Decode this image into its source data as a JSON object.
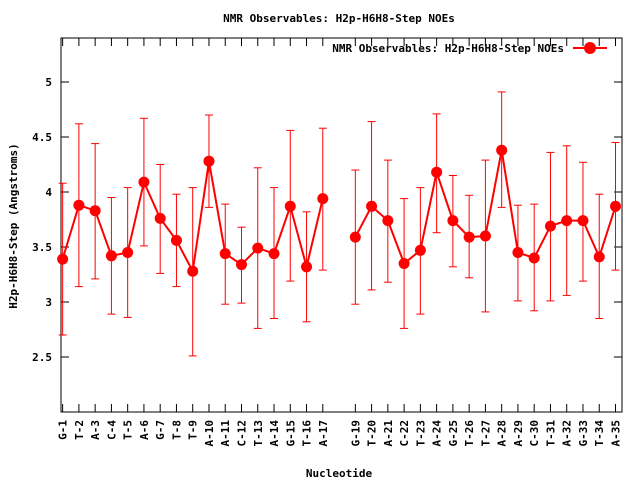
{
  "chart_data": {
    "type": "line",
    "title": "NMR Observables: H2p-H6H8-Step NOEs",
    "xlabel": "Nucleotide",
    "ylabel": "H2p-H6H8-Step (Angstroms)",
    "ylim": [
      2.0,
      5.4
    ],
    "yticks": [
      2.5,
      3,
      3.5,
      4,
      4.5,
      5
    ],
    "ytick_labels": [
      "2.5",
      "3",
      "3.5",
      "4",
      "4.5",
      "5"
    ],
    "x_range": [
      0.9,
      35.4
    ],
    "legend": {
      "label": "NMR Observables: H2p-H6H8-Step NOEs",
      "position": "top-right"
    },
    "colors": {
      "series": "#ff0000",
      "axis": "#000000",
      "background": "#ffffff"
    },
    "categories": [
      "G-1",
      "T-2",
      "A-3",
      "C-4",
      "T-5",
      "A-6",
      "G-7",
      "T-8",
      "T-9",
      "A-10",
      "A-11",
      "C-12",
      "T-13",
      "A-14",
      "G-15",
      "T-16",
      "A-17",
      "G-19",
      "T-20",
      "A-21",
      "C-22",
      "T-23",
      "A-24",
      "G-25",
      "T-26",
      "T-27",
      "A-28",
      "A-29",
      "C-30",
      "T-31",
      "A-32",
      "G-33",
      "T-34",
      "A-35"
    ],
    "positions": [
      1,
      2,
      3,
      4,
      5,
      6,
      7,
      8,
      9,
      10,
      11,
      12,
      13,
      14,
      15,
      16,
      17,
      19,
      20,
      21,
      22,
      23,
      24,
      25,
      26,
      27,
      28,
      29,
      30,
      31,
      32,
      33,
      34,
      35
    ],
    "series": [
      {
        "name": "NMR Observables: H2p-H6H8-Step NOEs",
        "segments": [
          {
            "x": [
              1,
              2,
              3,
              4,
              5,
              6,
              7,
              8,
              9,
              10,
              11,
              12,
              13,
              14,
              15,
              16,
              17
            ],
            "y": [
              3.39,
              3.88,
              3.83,
              3.42,
              3.45,
              4.09,
              3.76,
              3.56,
              3.28,
              4.28,
              3.44,
              3.34,
              3.49,
              3.44,
              3.87,
              3.32,
              3.94
            ],
            "err_low": [
              2.7,
              3.14,
              3.21,
              2.89,
              2.86,
              3.51,
              3.26,
              3.14,
              2.51,
              3.86,
              2.98,
              2.99,
              2.76,
              2.85,
              3.19,
              2.82,
              3.29
            ],
            "err_high": [
              4.08,
              4.62,
              4.44,
              3.95,
              4.04,
              4.67,
              4.25,
              3.98,
              4.04,
              4.7,
              3.89,
              3.68,
              4.22,
              4.04,
              4.56,
              3.82,
              4.58
            ]
          },
          {
            "x": [
              19,
              20,
              21,
              22,
              23,
              24,
              25,
              26,
              27,
              28,
              29,
              30,
              31,
              32,
              33,
              34,
              35
            ],
            "y": [
              3.59,
              3.87,
              3.74,
              3.35,
              3.47,
              4.18,
              3.74,
              3.59,
              3.6,
              4.38,
              3.45,
              3.4,
              3.69,
              3.74,
              3.74,
              3.41,
              3.87
            ],
            "err_low": [
              2.98,
              3.11,
              3.18,
              2.76,
              2.89,
              3.63,
              3.32,
              3.22,
              2.91,
              3.86,
              3.01,
              2.92,
              3.01,
              3.06,
              3.19,
              2.85,
              3.29
            ],
            "err_high": [
              4.2,
              4.64,
              4.29,
              3.94,
              4.04,
              4.71,
              4.15,
              3.97,
              4.29,
              4.91,
              3.88,
              3.89,
              4.36,
              4.42,
              4.27,
              3.98,
              4.45
            ]
          }
        ]
      }
    ]
  }
}
